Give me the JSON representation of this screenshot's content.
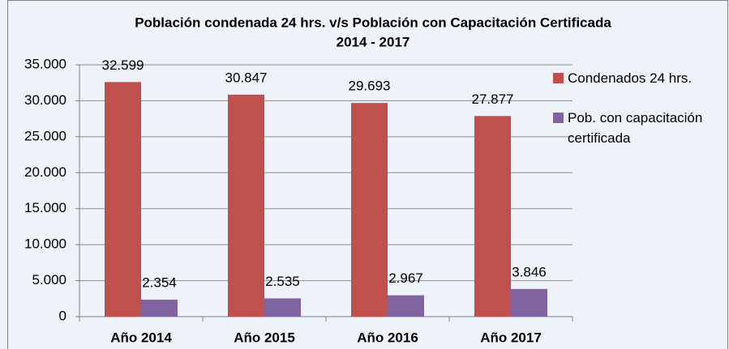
{
  "chart_data": {
    "type": "bar",
    "title": "Población condenada 24 hrs. v/s Población con Capacitación Certificada",
    "subtitle": "2014 - 2017",
    "categories": [
      "Año 2014",
      "Año 2015",
      "Año 2016",
      "Año 2017"
    ],
    "series": [
      {
        "name": "Condenados 24 hrs.",
        "color": "#c0504d",
        "values": [
          32599,
          30847,
          29693,
          27877
        ],
        "value_labels": [
          "32.599",
          "30.847",
          "29.693",
          "27.877"
        ]
      },
      {
        "name": "Pob. con capacitación certificada",
        "color": "#8064a2",
        "values": [
          2354,
          2535,
          2967,
          3846
        ],
        "value_labels": [
          "2.354",
          "2.535",
          "2.967",
          "3.846"
        ]
      }
    ],
    "ylim": [
      0,
      35000
    ],
    "yticks": [
      {
        "value": 0,
        "label": "0"
      },
      {
        "value": 5000,
        "label": "5.000"
      },
      {
        "value": 10000,
        "label": "10.000"
      },
      {
        "value": 15000,
        "label": "15.000"
      },
      {
        "value": 20000,
        "label": "20.000"
      },
      {
        "value": 25000,
        "label": "25.000"
      },
      {
        "value": 30000,
        "label": "30.000"
      },
      {
        "value": 35000,
        "label": "35.000"
      }
    ],
    "grid": true,
    "legend": "right"
  }
}
